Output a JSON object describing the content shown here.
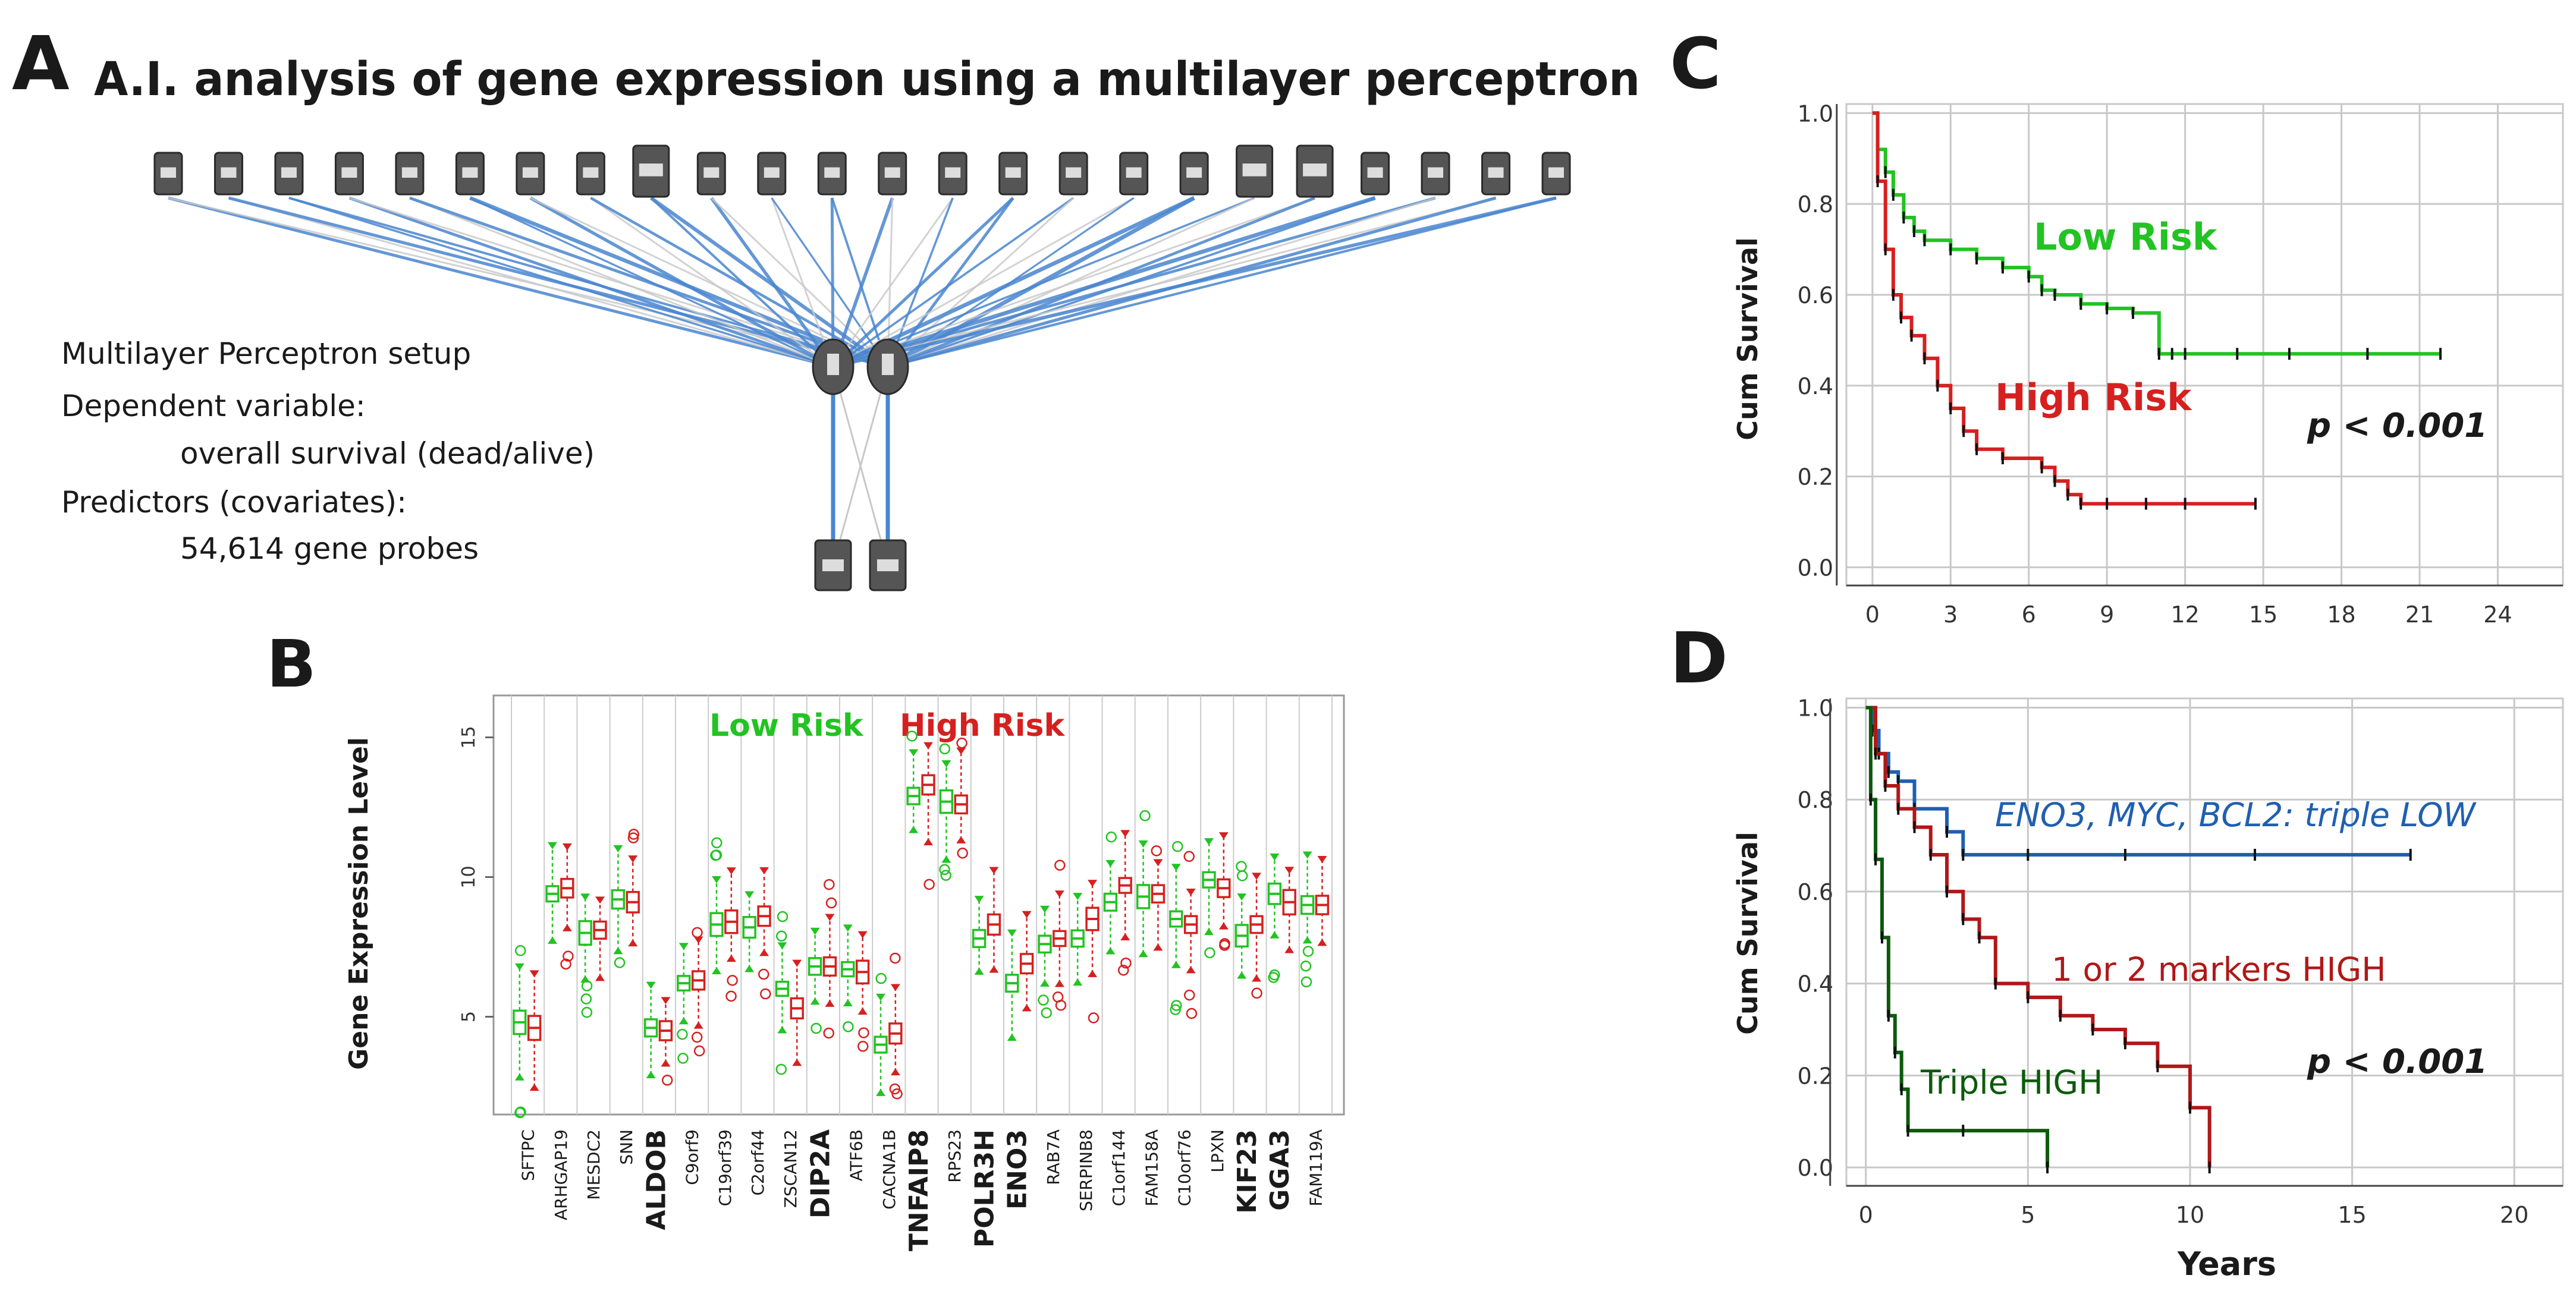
{
  "colors": {
    "green": "#22c322",
    "red": "#d62020",
    "black": "#1a1a1a",
    "blue": "#1f5fb0",
    "darkgreen": "#0d5a0d",
    "darkred": "#b01818",
    "line_blue": "#4a86d0",
    "line_gray": "#c8c8c8",
    "grid": "#c8c8c8",
    "node": "#555555"
  },
  "panelA": {
    "letter": "A",
    "title": "A.I. analysis of gene expression using a multilayer perceptron",
    "setup_lines": [
      "Multilayer Perceptron setup",
      "Dependent variable:",
      "overall survival (dead/alive)",
      "Predictors (covariates):",
      "54,614 gene probes"
    ],
    "input_node_count": 24,
    "hidden_node_count": 2,
    "output_node_count": 2
  },
  "panelB": {
    "letter": "B",
    "legend_low": "Low Risk",
    "legend_high": "High Risk"
  },
  "panelC": {
    "letter": "C",
    "label_low": "Low Risk",
    "label_high": "High Risk",
    "p_value": "p < 0.001"
  },
  "panelD": {
    "letter": "D",
    "label_triple_low": "ENO3, MYC, BCL2: triple LOW",
    "label_mid": "1 or 2 markers HIGH",
    "label_triple_high": "Triple HIGH",
    "p_value": "p < 0.001"
  },
  "chart_data": [
    {
      "type": "box",
      "panel": "B",
      "ylabel": "Gene Expression Level",
      "ylim": [
        1.5,
        16.5
      ],
      "yticks": [
        5,
        10,
        15
      ],
      "legend": [
        "Low Risk",
        "High Risk"
      ],
      "categories": [
        "SFTPC",
        "ARHGAP19",
        "MESDC2",
        "SNN",
        "ALDOB",
        "C9orf9",
        "C19orf39",
        "C2orf44",
        "ZSCAN12",
        "DIP2A",
        "ATF6B",
        "CACNA1B",
        "TNFAIP8",
        "RPS23",
        "POLR3H",
        "ENO3",
        "RAB7A",
        "SERPINB8",
        "C1orf144",
        "FAM158A",
        "C10orf76",
        "LPXN",
        "KIF23",
        "GGA3",
        "FAM119A"
      ],
      "bold_categories": [
        "ALDOB",
        "DIP2A",
        "TNFAIP8",
        "POLR3H",
        "ENO3",
        "KIF23",
        "GGA3"
      ],
      "series": [
        {
          "name": "Low Risk",
          "medians": [
            4.8,
            9.4,
            8.0,
            9.2,
            4.6,
            6.2,
            8.3,
            8.2,
            6.0,
            6.8,
            6.7,
            4.0,
            12.9,
            12.7,
            7.8,
            6.2,
            7.6,
            7.8,
            9.1,
            9.3,
            8.5,
            9.9,
            7.9,
            9.4,
            9.0
          ]
        },
        {
          "name": "High Risk",
          "medians": [
            4.6,
            9.6,
            8.1,
            9.1,
            4.5,
            6.3,
            8.4,
            8.6,
            5.3,
            6.8,
            6.6,
            4.4,
            13.3,
            12.6,
            8.3,
            6.9,
            7.8,
            8.5,
            9.7,
            9.4,
            8.3,
            9.6,
            8.3,
            9.1,
            9.0
          ]
        }
      ]
    },
    {
      "type": "line",
      "panel": "C",
      "subtype": "kaplan-meier",
      "ylabel": "Cum Survival",
      "xlabel": "",
      "xlim": [
        -1,
        26.5
      ],
      "ylim": [
        -0.04,
        1.02
      ],
      "xticks": [
        0,
        3,
        6,
        9,
        12,
        15,
        18,
        21,
        24
      ],
      "yticks": [
        0.0,
        0.2,
        0.4,
        0.6,
        0.8,
        1.0
      ],
      "series": [
        {
          "name": "Low Risk",
          "x": [
            0,
            0.2,
            0.5,
            0.8,
            1.2,
            1.6,
            2.0,
            3.0,
            4.0,
            5.0,
            6.0,
            6.5,
            7.0,
            8.0,
            9.0,
            10.0,
            11.0,
            11.5,
            12.0,
            14.0,
            16.0,
            19.0,
            21.8
          ],
          "y": [
            1.0,
            0.92,
            0.87,
            0.82,
            0.77,
            0.74,
            0.72,
            0.7,
            0.68,
            0.66,
            0.64,
            0.61,
            0.6,
            0.58,
            0.57,
            0.56,
            0.47,
            0.47,
            0.47,
            0.47,
            0.47,
            0.47,
            0.47
          ]
        },
        {
          "name": "High Risk",
          "x": [
            0,
            0.2,
            0.5,
            0.8,
            1.1,
            1.5,
            2.0,
            2.5,
            3.0,
            3.5,
            4.0,
            5.0,
            6.5,
            7.0,
            7.5,
            8.0,
            9.0,
            10.5,
            12.0,
            14.7
          ],
          "y": [
            1.0,
            0.85,
            0.7,
            0.6,
            0.55,
            0.51,
            0.46,
            0.4,
            0.35,
            0.3,
            0.26,
            0.24,
            0.22,
            0.19,
            0.16,
            0.14,
            0.14,
            0.14,
            0.14,
            0.14
          ]
        }
      ]
    },
    {
      "type": "line",
      "panel": "D",
      "subtype": "kaplan-meier",
      "ylabel": "Cum Survival",
      "xlabel": "Years",
      "xlim": [
        -0.6,
        21.5
      ],
      "ylim": [
        -0.04,
        1.02
      ],
      "xticks": [
        0,
        5,
        10,
        15,
        20
      ],
      "yticks": [
        0.0,
        0.2,
        0.4,
        0.6,
        0.8,
        1.0
      ],
      "series": [
        {
          "name": "ENO3, MYC, BCL2: triple LOW",
          "x": [
            0,
            0.2,
            0.4,
            0.7,
            1.0,
            1.5,
            2.5,
            3.0,
            5.0,
            8.0,
            12.0,
            16.8
          ],
          "y": [
            1.0,
            0.95,
            0.9,
            0.86,
            0.84,
            0.78,
            0.73,
            0.68,
            0.68,
            0.68,
            0.68,
            0.68
          ]
        },
        {
          "name": "1 or 2 markers HIGH",
          "x": [
            0,
            0.3,
            0.6,
            1.0,
            1.5,
            2.0,
            2.5,
            3.0,
            3.5,
            4.0,
            5.0,
            6.0,
            7.0,
            8.0,
            9.0,
            10.0,
            10.6
          ],
          "y": [
            1.0,
            0.9,
            0.83,
            0.78,
            0.74,
            0.68,
            0.6,
            0.54,
            0.5,
            0.4,
            0.37,
            0.33,
            0.3,
            0.27,
            0.22,
            0.13,
            0.0
          ]
        },
        {
          "name": "Triple HIGH",
          "x": [
            0,
            0.15,
            0.3,
            0.5,
            0.7,
            0.9,
            1.1,
            1.3,
            3.0,
            5.6
          ],
          "y": [
            1.0,
            0.8,
            0.67,
            0.5,
            0.33,
            0.25,
            0.17,
            0.08,
            0.08,
            0.0
          ]
        }
      ]
    }
  ]
}
